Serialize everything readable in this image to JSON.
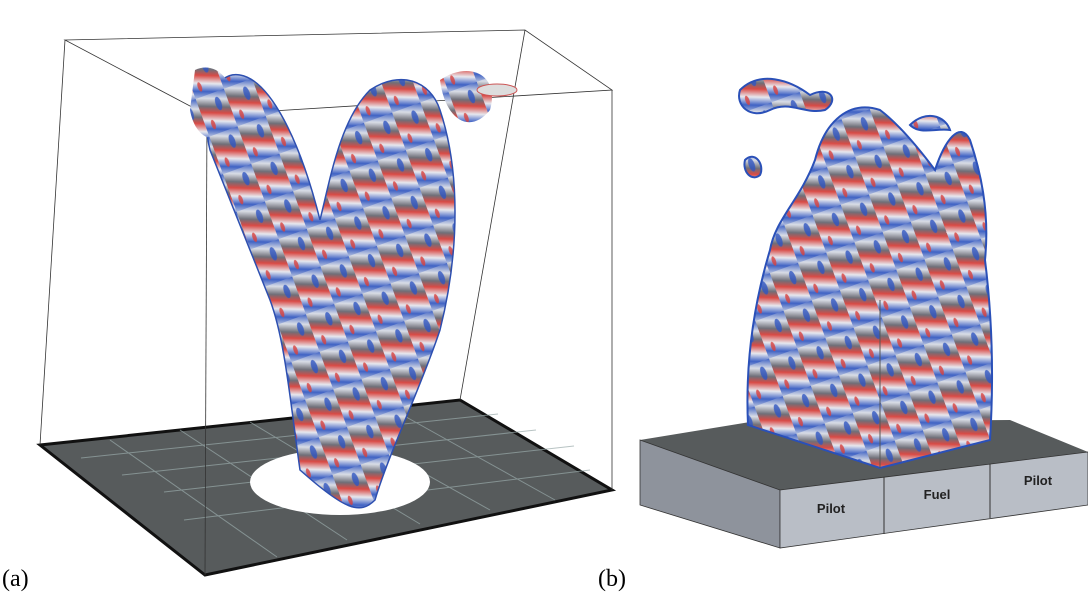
{
  "panels": [
    {
      "label": "(a)"
    },
    {
      "label": "(b)",
      "blocks": [
        "Pilot",
        "Fuel",
        "Pilot"
      ]
    }
  ]
}
